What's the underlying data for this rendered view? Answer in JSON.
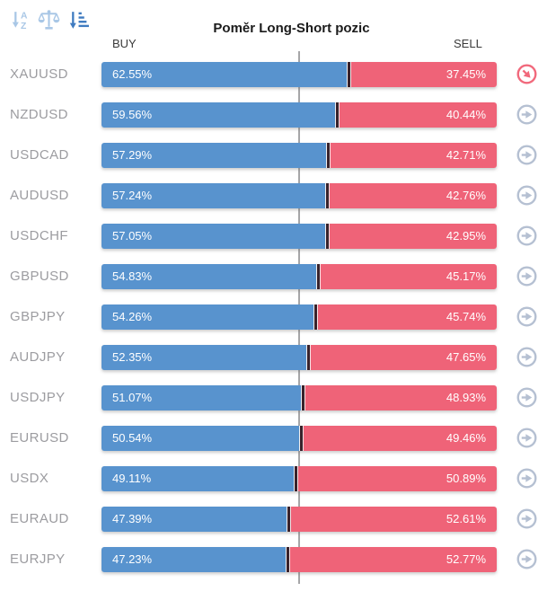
{
  "header": {
    "title": "Poměr Long-Short pozic",
    "buy_label": "BUY",
    "sell_label": "SELL"
  },
  "toolbar": {
    "sort_alpha": {
      "letter_top": "A",
      "letter_bottom": "Z"
    },
    "icons": [
      "sort-alphabetical-icon",
      "balance-scale-icon",
      "sort-amount-icon"
    ],
    "active_icon": "sort-amount-icon"
  },
  "colors": {
    "buy_bar": "#5893ce",
    "sell_bar": "#ef6378",
    "bar_divider": "#39222b",
    "symbol_text": "#9c9ca0",
    "center_line": "#a6a6a8",
    "arrow_icon_default": "#b5c0d2",
    "arrow_icon_highlight": "#f1697c",
    "toolbar_icon": "#a9c7e6",
    "toolbar_icon_active": "#3f7bc0"
  },
  "rows": [
    {
      "symbol": "XAUUSD",
      "buy": 62.55,
      "sell": 37.45,
      "buy_label": "62.55%",
      "sell_label": "37.45%",
      "action_icon": "circle-arrow-red-icon"
    },
    {
      "symbol": "NZDUSD",
      "buy": 59.56,
      "sell": 40.44,
      "buy_label": "59.56%",
      "sell_label": "40.44%",
      "action_icon": "circle-arrow-icon"
    },
    {
      "symbol": "USDCAD",
      "buy": 57.29,
      "sell": 42.71,
      "buy_label": "57.29%",
      "sell_label": "42.71%",
      "action_icon": "circle-arrow-icon"
    },
    {
      "symbol": "AUDUSD",
      "buy": 57.24,
      "sell": 42.76,
      "buy_label": "57.24%",
      "sell_label": "42.76%",
      "action_icon": "circle-arrow-icon"
    },
    {
      "symbol": "USDCHF",
      "buy": 57.05,
      "sell": 42.95,
      "buy_label": "57.05%",
      "sell_label": "42.95%",
      "action_icon": "circle-arrow-icon"
    },
    {
      "symbol": "GBPUSD",
      "buy": 54.83,
      "sell": 45.17,
      "buy_label": "54.83%",
      "sell_label": "45.17%",
      "action_icon": "circle-arrow-icon"
    },
    {
      "symbol": "GBPJPY",
      "buy": 54.26,
      "sell": 45.74,
      "buy_label": "54.26%",
      "sell_label": "45.74%",
      "action_icon": "circle-arrow-icon"
    },
    {
      "symbol": "AUDJPY",
      "buy": 52.35,
      "sell": 47.65,
      "buy_label": "52.35%",
      "sell_label": "47.65%",
      "action_icon": "circle-arrow-icon"
    },
    {
      "symbol": "USDJPY",
      "buy": 51.07,
      "sell": 48.93,
      "buy_label": "51.07%",
      "sell_label": "48.93%",
      "action_icon": "circle-arrow-icon"
    },
    {
      "symbol": "EURUSD",
      "buy": 50.54,
      "sell": 49.46,
      "buy_label": "50.54%",
      "sell_label": "49.46%",
      "action_icon": "circle-arrow-icon"
    },
    {
      "symbol": "USDX",
      "buy": 49.11,
      "sell": 50.89,
      "buy_label": "49.11%",
      "sell_label": "50.89%",
      "action_icon": "circle-arrow-icon"
    },
    {
      "symbol": "EURAUD",
      "buy": 47.39,
      "sell": 52.61,
      "buy_label": "47.39%",
      "sell_label": "52.61%",
      "action_icon": "circle-arrow-icon"
    },
    {
      "symbol": "EURJPY",
      "buy": 47.23,
      "sell": 52.77,
      "buy_label": "47.23%",
      "sell_label": "52.77%",
      "action_icon": "circle-arrow-icon"
    }
  ],
  "chart_data": {
    "type": "bar",
    "orientation": "horizontal-stacked",
    "title": "Poměr Long-Short pozic",
    "value_format": "percent",
    "xlim": [
      0,
      100
    ],
    "center_gridline": 50,
    "legend_position": "top (BUY left, SELL right)",
    "categories": [
      "XAUUSD",
      "NZDUSD",
      "USDCAD",
      "AUDUSD",
      "USDCHF",
      "GBPUSD",
      "GBPJPY",
      "AUDJPY",
      "USDJPY",
      "EURUSD",
      "USDX",
      "EURAUD",
      "EURJPY"
    ],
    "series": [
      {
        "name": "BUY",
        "color": "#5893ce",
        "values": [
          62.55,
          59.56,
          57.29,
          57.24,
          57.05,
          54.83,
          54.26,
          52.35,
          51.07,
          50.54,
          49.11,
          47.39,
          47.23
        ]
      },
      {
        "name": "SELL",
        "color": "#ef6378",
        "values": [
          37.45,
          40.44,
          42.71,
          42.76,
          42.95,
          45.17,
          45.74,
          47.65,
          48.93,
          49.46,
          50.89,
          52.61,
          52.77
        ]
      }
    ]
  }
}
